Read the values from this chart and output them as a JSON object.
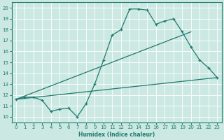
{
  "xlabel": "Humidex (Indice chaleur)",
  "xlim": [
    -0.5,
    23.5
  ],
  "ylim": [
    9.5,
    20.5
  ],
  "xticks": [
    0,
    1,
    2,
    3,
    4,
    5,
    6,
    7,
    8,
    9,
    10,
    11,
    12,
    13,
    14,
    15,
    16,
    17,
    18,
    19,
    20,
    21,
    22,
    23
  ],
  "yticks": [
    10,
    11,
    12,
    13,
    14,
    15,
    16,
    17,
    18,
    19,
    20
  ],
  "bg_color": "#cce8e3",
  "line_color": "#1e7b6e",
  "line_jagged": {
    "x": [
      0,
      1,
      2,
      3,
      4,
      5,
      6,
      7,
      8,
      9,
      10,
      11,
      12,
      13,
      14,
      15,
      16,
      17,
      18,
      19,
      20,
      21,
      22,
      23
    ],
    "y": [
      11.6,
      11.8,
      11.8,
      11.5,
      10.5,
      10.7,
      10.8,
      10.0,
      11.2,
      13.0,
      15.2,
      17.5,
      18.0,
      19.9,
      19.9,
      19.8,
      18.5,
      18.8,
      19.0,
      17.8,
      16.4,
      15.2,
      14.5,
      13.6
    ]
  },
  "line_upper_linear": {
    "x": [
      0,
      20
    ],
    "y": [
      11.6,
      17.8
    ]
  },
  "line_lower_linear": {
    "x": [
      0,
      23
    ],
    "y": [
      11.6,
      13.6
    ]
  }
}
